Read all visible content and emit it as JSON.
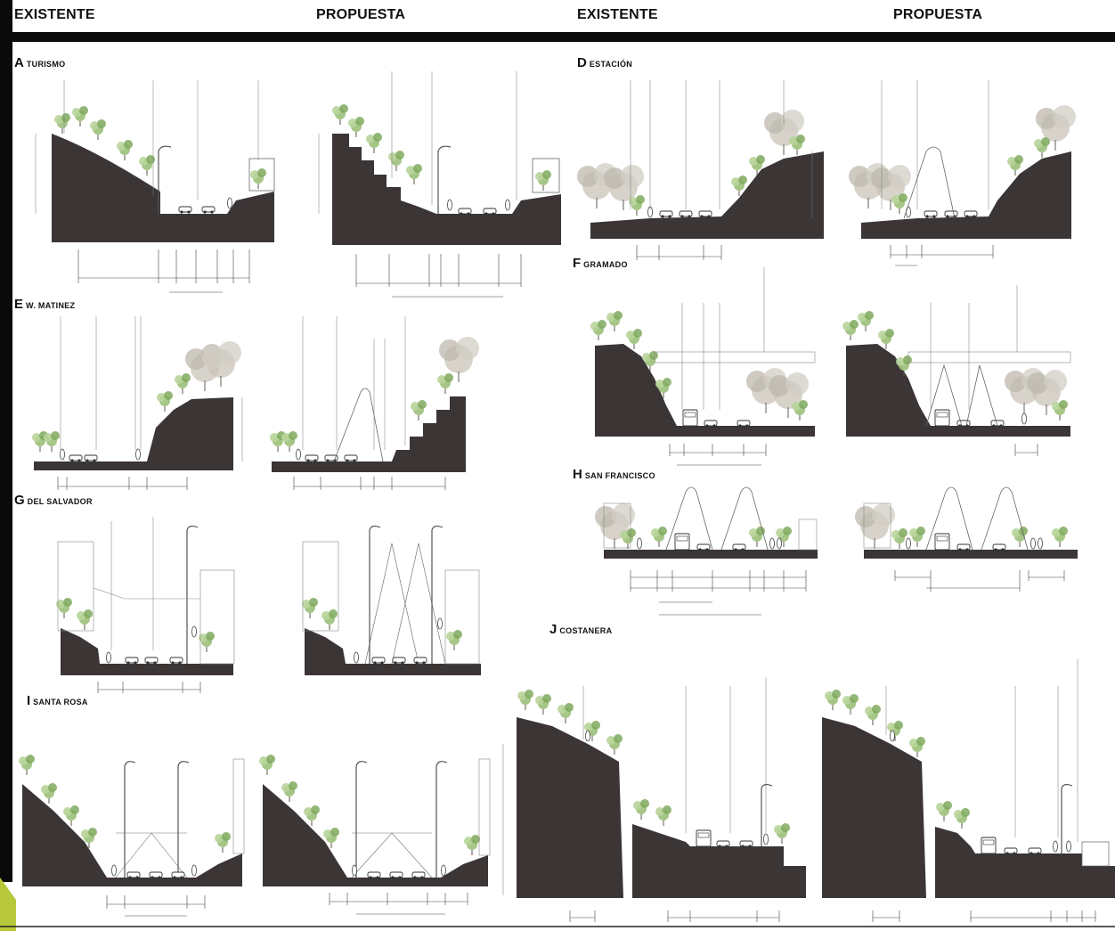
{
  "headers": {
    "left_existing": "EXISTENTE",
    "left_proposed": "PROPUESTA",
    "right_existing": "EXISTENTE",
    "right_proposed": "PROPUESTA"
  },
  "sections": [
    {
      "id": "A",
      "letter": "A",
      "title": "TURISMO"
    },
    {
      "id": "D",
      "letter": "D",
      "title": "ESTACIÓN"
    },
    {
      "id": "E",
      "letter": "E",
      "title": "W. MATINEZ"
    },
    {
      "id": "F",
      "letter": "F",
      "title": "GRAMADO"
    },
    {
      "id": "G",
      "letter": "G",
      "title": "DEL SALVADOR"
    },
    {
      "id": "H",
      "letter": "H",
      "title": "SAN FRANCISCO"
    },
    {
      "id": "J",
      "letter": "J",
      "title": "COSTANERA"
    },
    {
      "id": "I",
      "letter": "I",
      "title": "SANTA ROSA"
    }
  ],
  "colors": {
    "terrain": "#3b3536",
    "tree_green": "#9cc07a",
    "tree_dark": "#6f9a52",
    "tree_grey": "#bdb8ad",
    "line": "#555555"
  }
}
